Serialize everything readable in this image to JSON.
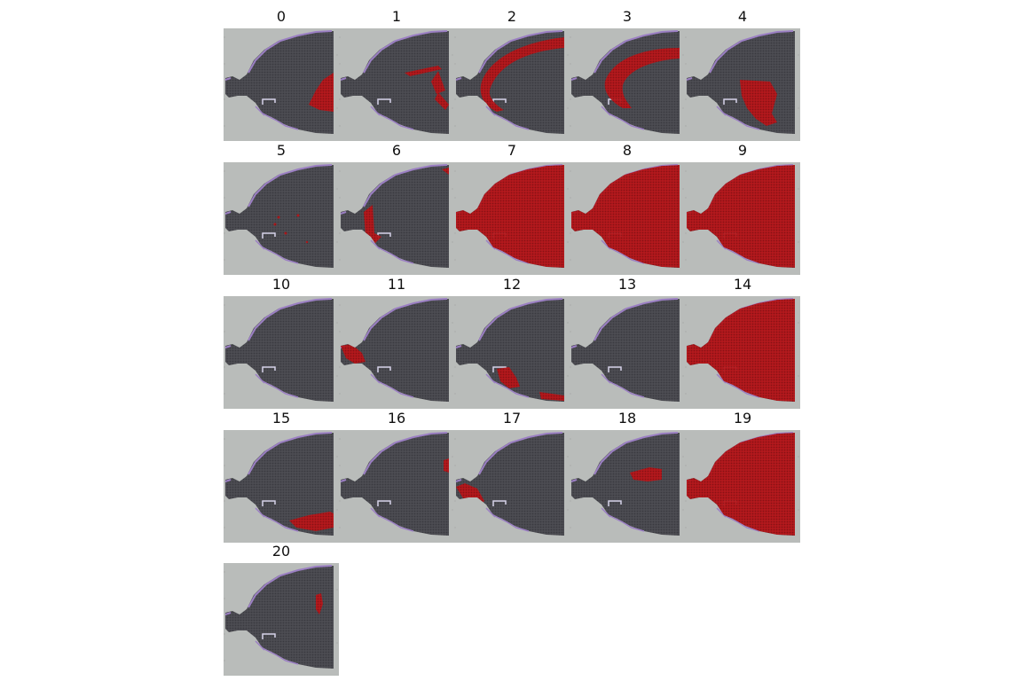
{
  "panels": [
    {
      "label": "0",
      "highlight": "region-right-mid"
    },
    {
      "label": "1",
      "highlight": "streaks-right"
    },
    {
      "label": "2",
      "highlight": "upper-arc"
    },
    {
      "label": "3",
      "highlight": "inner-arc"
    },
    {
      "label": "4",
      "highlight": "center-blob"
    },
    {
      "label": "5",
      "highlight": "sparse-dots"
    },
    {
      "label": "6",
      "highlight": "left-edge-strip"
    },
    {
      "label": "7",
      "highlight": "full"
    },
    {
      "label": "8",
      "highlight": "full"
    },
    {
      "label": "9",
      "highlight": "full"
    },
    {
      "label": "10",
      "highlight": "none"
    },
    {
      "label": "11",
      "highlight": "left-lobes"
    },
    {
      "label": "12",
      "highlight": "bottom-center"
    },
    {
      "label": "13",
      "highlight": "none"
    },
    {
      "label": "14",
      "highlight": "full"
    },
    {
      "label": "15",
      "highlight": "bottom-right"
    },
    {
      "label": "16",
      "highlight": "right-edge-spot"
    },
    {
      "label": "17",
      "highlight": "left-bottom-blob"
    },
    {
      "label": "18",
      "highlight": "center-spot"
    },
    {
      "label": "19",
      "highlight": "full"
    },
    {
      "label": "20",
      "highlight": "right-small"
    }
  ],
  "colors": {
    "background": "#b9bcba",
    "tissue": "#4c4c52",
    "highlight": "#c0161a",
    "border": "#9b7fc3"
  }
}
